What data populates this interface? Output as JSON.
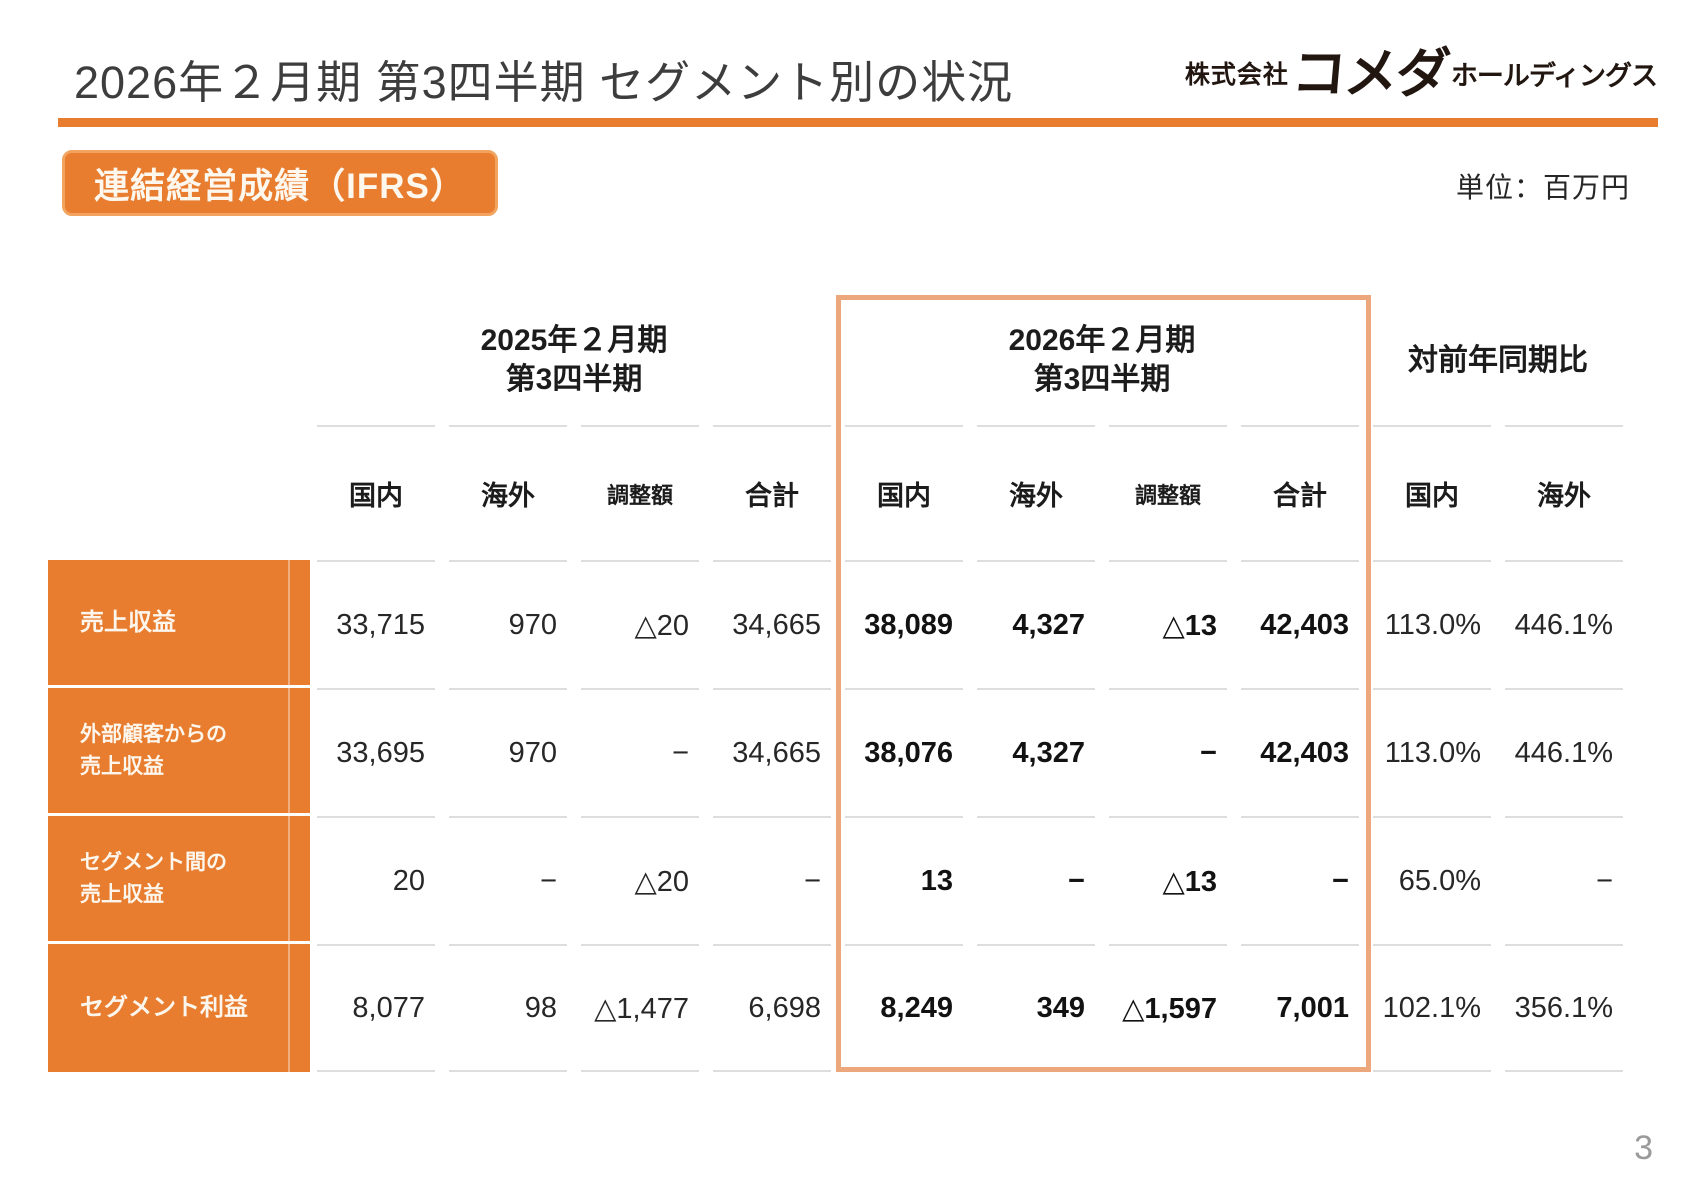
{
  "slide": {
    "title": "2026年２月期 第3四半期 セグメント別の状況",
    "section_badge": "連結経営成績（IFRS）",
    "unit_note": "単位：百万円",
    "page_number": "3",
    "logo": {
      "prefix": "株式会社",
      "brand": "コメダ",
      "suffix": "ホールディングス"
    }
  },
  "colors": {
    "accent_orange": "#e87d2f",
    "badge_border": "#f2a35f",
    "highlight_border": "#eda77d",
    "grid_line": "#dedede",
    "title_gray": "#3d3d3d",
    "value_ink": "#272727",
    "page_num_gray": "#9a9a9a"
  },
  "table": {
    "groups": [
      {
        "line1": "2025年２月期",
        "line2": "第3四半期"
      },
      {
        "line1": "2026年２月期",
        "line2": "第3四半期"
      },
      {
        "line1": "対前年同期比",
        "line2": ""
      }
    ],
    "columns": [
      "国内",
      "海外",
      "調整額",
      "合計",
      "国内",
      "海外",
      "調整額",
      "合計",
      "国内",
      "海外"
    ],
    "rows": [
      {
        "label": "売上収益",
        "label2": "",
        "cells": [
          "33,715",
          "970",
          "△20",
          "34,665",
          "38,089",
          "4,327",
          "△13",
          "42,403",
          "113.0%",
          "446.1%"
        ]
      },
      {
        "label": "外部顧客からの",
        "label2": "売上収益",
        "cells": [
          "33,695",
          "970",
          "−",
          "34,665",
          "38,076",
          "4,327",
          "−",
          "42,403",
          "113.0%",
          "446.1%"
        ]
      },
      {
        "label": "セグメント間の",
        "label2": "売上収益",
        "cells": [
          "20",
          "−",
          "△20",
          "−",
          "13",
          "−",
          "△13",
          "−",
          "65.0%",
          "−"
        ]
      },
      {
        "label": "セグメント利益",
        "label2": "",
        "cells": [
          "8,077",
          "98",
          "△1,477",
          "6,698",
          "8,249",
          "349",
          "△1,597",
          "7,001",
          "102.1%",
          "356.1%"
        ]
      }
    ]
  }
}
